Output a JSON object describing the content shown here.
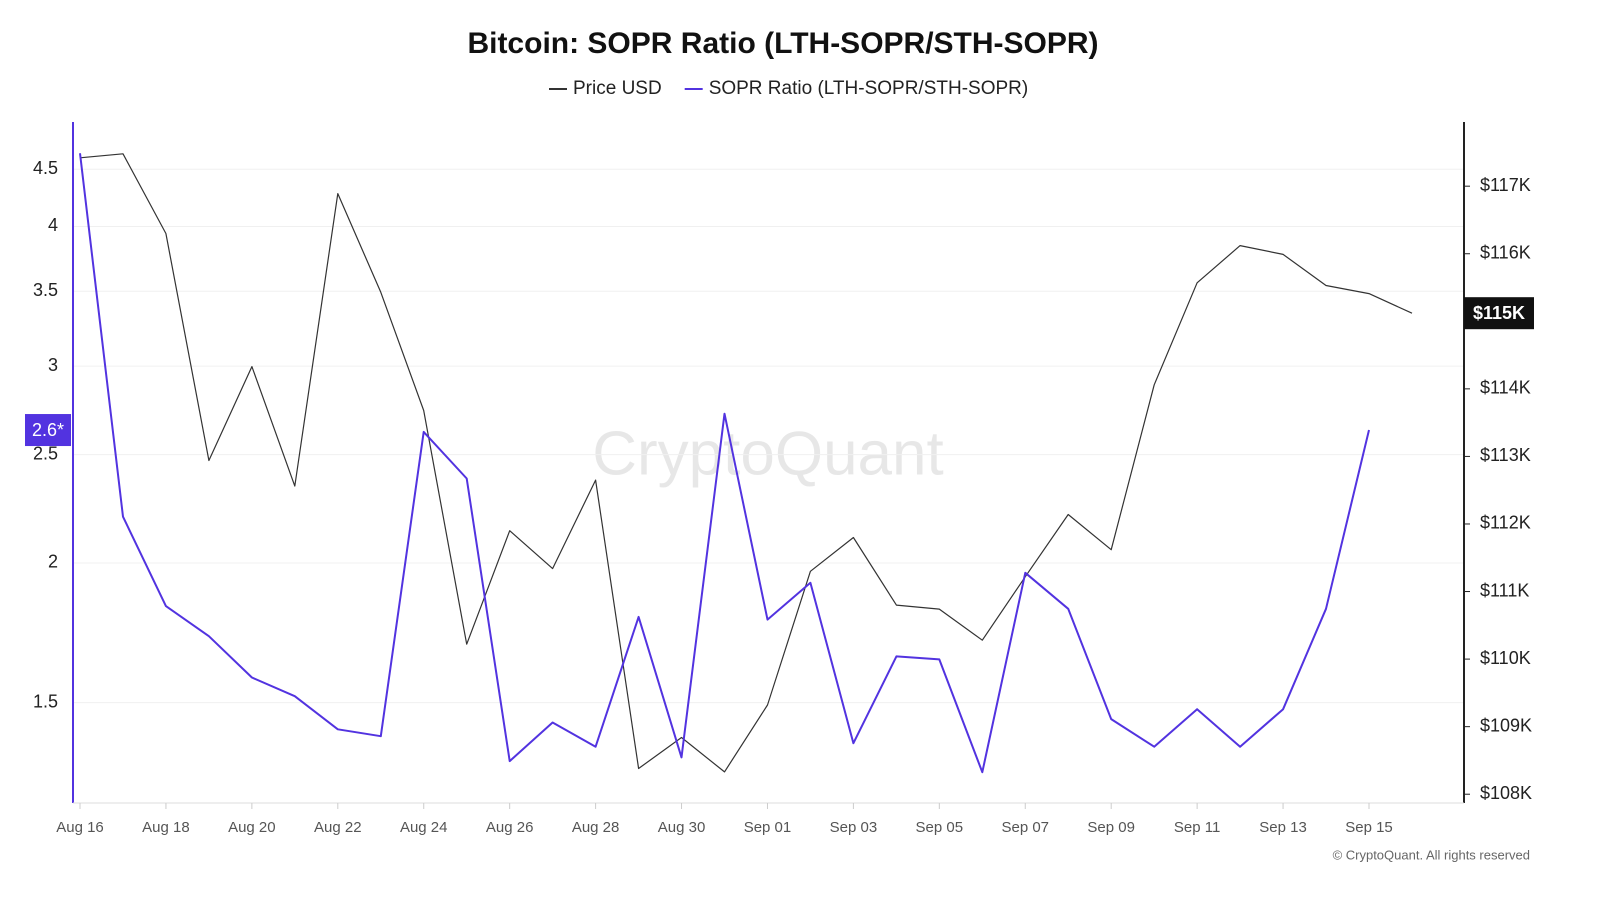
{
  "chart_data": {
    "type": "line",
    "title": "Bitcoin: SOPR Ratio (LTH-SOPR/STH-SOPR)",
    "categories": [
      "Aug 16",
      null,
      "Aug 18",
      null,
      "Aug 20",
      null,
      "Aug 22",
      null,
      "Aug 24",
      null,
      "Aug 26",
      null,
      "Aug 28",
      null,
      "Aug 30",
      null,
      "Sep 01",
      null,
      "Sep 03",
      null,
      "Sep 05",
      null,
      "Sep 07",
      null,
      "Sep 09",
      null,
      "Sep 11",
      null,
      "Sep 13",
      null,
      "Sep 15",
      null
    ],
    "series": [
      {
        "name": "Price USD",
        "color": "#333333",
        "axis": "y2",
        "values": [
          117420,
          117480,
          116300,
          112940,
          114330,
          112560,
          116890,
          115430,
          113680,
          110220,
          111900,
          111340,
          112650,
          108380,
          108840,
          108330,
          109320,
          111300,
          111800,
          110800,
          110740,
          110280,
          111220,
          112140,
          111620,
          114060,
          115570,
          116120,
          115990,
          115530,
          115410,
          115120
        ]
      },
      {
        "name": "SOPR Ratio (LTH-SOPR/STH-SOPR)",
        "color": "#5233e0",
        "values": [
          4.65,
          2.2,
          1.83,
          1.72,
          1.58,
          1.52,
          1.42,
          1.4,
          2.62,
          2.38,
          1.33,
          1.44,
          1.37,
          1.79,
          1.34,
          2.72,
          1.78,
          1.92,
          1.38,
          1.65,
          1.64,
          1.3,
          1.96,
          1.82,
          1.45,
          1.37,
          1.48,
          1.37,
          1.48,
          1.82,
          2.63,
          null
        ]
      }
    ],
    "ylim": [
      1.22,
      4.96
    ],
    "ylog": true,
    "yticks": [
      1.5,
      2,
      2.5,
      3,
      3.5,
      4,
      4.5
    ],
    "y2lim": [
      107870,
      117950
    ],
    "y2ticks": [
      {
        "value": 108000,
        "label": "$108K"
      },
      {
        "value": 109000,
        "label": "$109K"
      },
      {
        "value": 110000,
        "label": "$110K"
      },
      {
        "value": 111000,
        "label": "$111K"
      },
      {
        "value": 112000,
        "label": "$112K"
      },
      {
        "value": 113000,
        "label": "$113K"
      },
      {
        "value": 114000,
        "label": "$114K"
      },
      {
        "value": 115000,
        "label": "$115K"
      },
      {
        "value": 116000,
        "label": "$116K"
      },
      {
        "value": 117000,
        "label": "$117K"
      }
    ],
    "grid": true,
    "legend": "top",
    "annotations": [
      "2.6*",
      "$115K"
    ],
    "watermark": "CryptoQuant",
    "footer": "© CryptoQuant. All rights reserved"
  }
}
